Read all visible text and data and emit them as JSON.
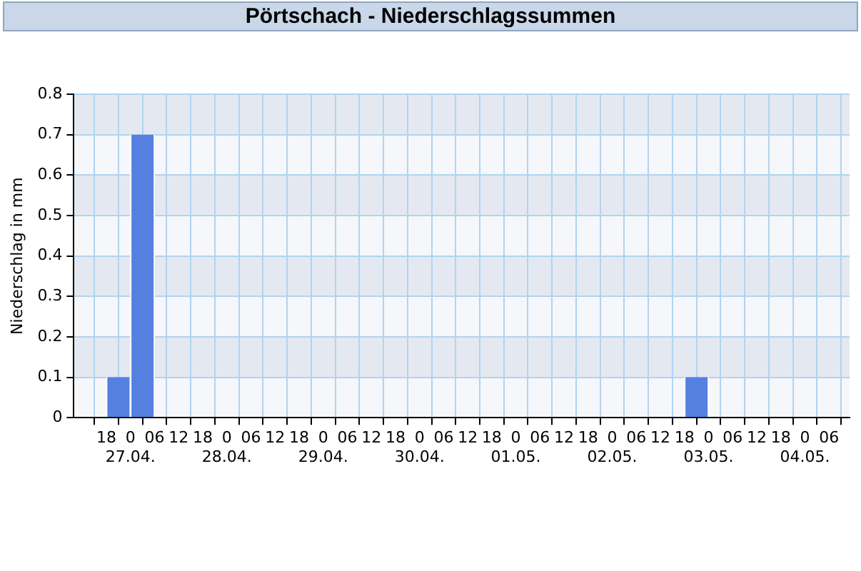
{
  "chart_data": {
    "type": "bar",
    "title": "Pörtschach - Niederschlagssummen",
    "ylabel": "Niederschlag in mm",
    "x": [
      "--04-26T21:00",
      "--04-27T03:00",
      "--05-02T21:00"
    ],
    "values": [
      0.1,
      0.7,
      0.1
    ],
    "color": "#5580e0",
    "xlim": [
      "--04-26T13:00",
      "--05-04T08:00"
    ],
    "xticks": [
      {
        "value": "--04-26T18:00",
        "label": "18"
      },
      {
        "value": "--04-27T00:00",
        "label": "0\n27.04."
      },
      {
        "value": "--04-27T06:00",
        "label": "06"
      },
      {
        "value": "--04-27T12:00",
        "label": "12"
      },
      {
        "value": "--04-27T18:00",
        "label": "18"
      },
      {
        "value": "--04-28T00:00",
        "label": "0\n28.04."
      },
      {
        "value": "--04-28T06:00",
        "label": "06"
      },
      {
        "value": "--04-28T12:00",
        "label": "12"
      },
      {
        "value": "--04-28T18:00",
        "label": "18"
      },
      {
        "value": "--04-29T00:00",
        "label": "0\n29.04."
      },
      {
        "value": "--04-29T06:00",
        "label": "06"
      },
      {
        "value": "--04-29T12:00",
        "label": "12"
      },
      {
        "value": "--04-29T18:00",
        "label": "18"
      },
      {
        "value": "--04-30T00:00",
        "label": "0\n30.04."
      },
      {
        "value": "--04-30T06:00",
        "label": "06"
      },
      {
        "value": "--04-30T12:00",
        "label": "12"
      },
      {
        "value": "--04-30T18:00",
        "label": "18"
      },
      {
        "value": "--05-01T00:00",
        "label": "0\n01.05."
      },
      {
        "value": "--05-01T06:00",
        "label": "06"
      },
      {
        "value": "--05-01T12:00",
        "label": "12"
      },
      {
        "value": "--05-01T18:00",
        "label": "18"
      },
      {
        "value": "--05-02T00:00",
        "label": "0\n02.05."
      },
      {
        "value": "--05-02T06:00",
        "label": "06"
      },
      {
        "value": "--05-02T12:00",
        "label": "12"
      },
      {
        "value": "--05-02T18:00",
        "label": "18"
      },
      {
        "value": "--05-03T00:00",
        "label": "0\n03.05."
      },
      {
        "value": "--05-03T06:00",
        "label": "06"
      },
      {
        "value": "--05-03T12:00",
        "label": "12"
      },
      {
        "value": "--05-03T18:00",
        "label": "18"
      },
      {
        "value": "--05-04T00:00",
        "label": "0\n04.05."
      },
      {
        "value": "--05-04T06:00",
        "label": "06"
      }
    ],
    "ylim": [
      0,
      0.8
    ],
    "yticks": [
      0,
      0.1,
      0.2,
      0.3,
      0.4,
      0.5,
      0.6,
      0.7,
      0.8
    ],
    "grid": true,
    "legend": false
  }
}
